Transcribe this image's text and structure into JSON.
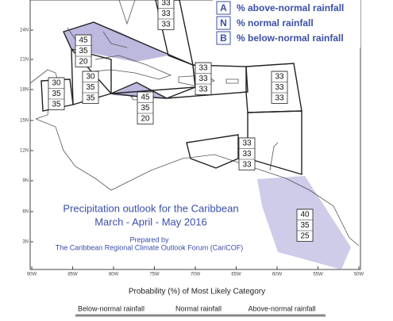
{
  "legend": [
    {
      "letter": "A",
      "text": "% above-normal rainfall"
    },
    {
      "letter": "N",
      "text": "% normal rainfall"
    },
    {
      "letter": "B",
      "text": "% below-normal rainfall"
    }
  ],
  "title": [
    "Precipitation outlook for the Caribbean",
    "March - April - May 2016"
  ],
  "credit": [
    "Prepared by",
    "The Caribbean Regional Climate Outlook Forum (CariCOF)"
  ],
  "lat_labels": [
    "24N",
    "21N",
    "18N",
    "15N",
    "12N",
    "9N",
    "6N",
    "3N"
  ],
  "lon_labels": [
    "90W",
    "85W",
    "80W",
    "75W",
    "70W",
    "65W",
    "60W",
    "55W",
    "50W"
  ],
  "zones": [
    {
      "values": [
        33,
        33,
        33
      ]
    },
    {
      "values": [
        45,
        35,
        20
      ]
    },
    {
      "values": [
        30,
        35,
        35
      ]
    },
    {
      "values": [
        30,
        35,
        35
      ]
    },
    {
      "values": [
        45,
        35,
        20
      ]
    },
    {
      "values": [
        33,
        33,
        33
      ]
    },
    {
      "values": [
        33,
        33,
        33
      ]
    },
    {
      "values": [
        33,
        33,
        33
      ]
    },
    {
      "values": [
        40,
        35,
        25
      ]
    }
  ],
  "scale": {
    "title": "Probability (%) of Most Likely Category",
    "labels": [
      "Below-normal rainfall",
      "Normal rainfall",
      "Above-normal rainfall"
    ]
  }
}
